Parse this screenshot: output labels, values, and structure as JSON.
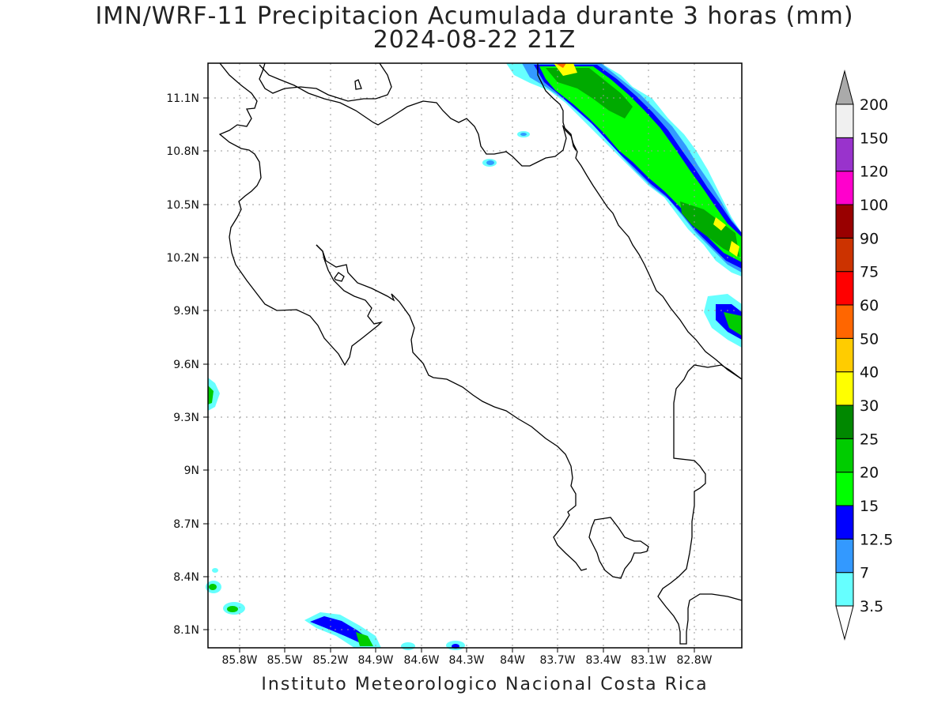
{
  "title": "IMN/WRF-11 Precipitacion Acumulada durante 3 horas (mm)",
  "subtitle": "2024-08-22 21Z",
  "footer": "Instituto Meteorologico Nacional Costa Rica",
  "map": {
    "lon_labels": [
      "85.8W",
      "85.5W",
      "85.2W",
      "84.9W",
      "84.6W",
      "84.3W",
      "84W",
      "83.7W",
      "83.4W",
      "83.1W",
      "82.8W"
    ],
    "lat_labels": [
      "11.1N",
      "10.8N",
      "10.5N",
      "10.2N",
      "9.9N",
      "9.6N",
      "9.3N",
      "9N",
      "8.7N",
      "8.4N",
      "8.1N"
    ],
    "lon_range": [
      86.0,
      82.5
    ],
    "lat_range": [
      8.0,
      11.3
    ],
    "grid": true
  },
  "colorbar": {
    "units": "mm",
    "levels": [
      "3.5",
      "7",
      "12.5",
      "15",
      "20",
      "25",
      "30",
      "40",
      "50",
      "60",
      "75",
      "90",
      "100",
      "120",
      "150",
      "200"
    ],
    "colors": [
      "#66ffff",
      "#3399ff",
      "#0000ff",
      "#00ff00",
      "#00cc00",
      "#008800",
      "#ffff00",
      "#ffcc00",
      "#ff6600",
      "#ff0000",
      "#cc3300",
      "#990000",
      "#ff00cc",
      "#9933cc",
      "#f0f0f0",
      "#aaaaaa"
    ]
  }
}
